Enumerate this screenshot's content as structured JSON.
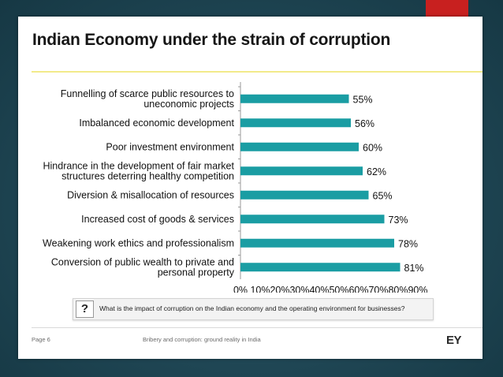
{
  "slide": {
    "title": "Indian Economy under the strain of corruption",
    "question_mark": "?",
    "question": "What is the impact of corruption on the Indian economy and the operating environment for businesses?",
    "page": "Page 6",
    "footer_note": "Bribery and corruption: ground reality in India",
    "logo": "EY"
  },
  "colors": {
    "bar": "#1a9da3",
    "accent_tab": "#c8201f",
    "title_rule": "#f2ea8a"
  },
  "chart_data": {
    "type": "bar",
    "orientation": "horizontal",
    "title": "",
    "xlabel": "",
    "ylabel": "",
    "xlim": [
      0,
      90
    ],
    "ticks": [
      "0%",
      "10%",
      "20%",
      "30%",
      "40%",
      "50%",
      "60%",
      "70%",
      "80%",
      "90%"
    ],
    "grid": false,
    "legend": "none",
    "categories": [
      "Funnelling of scarce public resources to uneconomic projects",
      "Imbalanced economic development",
      "Poor investment environment",
      "Hindrance in the development of fair market structures deterring healthy competition",
      "Diversion & misallocation of resources",
      "Increased cost of goods & services",
      "Weakening work ethics and professionalism",
      "Conversion of public wealth to private and personal property"
    ],
    "category_lines": [
      [
        "Funnelling of scarce public resources to",
        "uneconomic projects"
      ],
      [
        "Imbalanced economic development"
      ],
      [
        "Poor investment environment"
      ],
      [
        "Hindrance in the development of fair market",
        "structures deterring healthy competition"
      ],
      [
        "Diversion & misallocation of resources"
      ],
      [
        "Increased cost of goods & services"
      ],
      [
        "Weakening work ethics and professionalism"
      ],
      [
        "Conversion of public wealth to private and",
        "personal property"
      ]
    ],
    "values": [
      55,
      56,
      60,
      62,
      65,
      73,
      78,
      81
    ],
    "value_labels": [
      "55%",
      "56%",
      "60%",
      "62%",
      "65%",
      "73%",
      "78%",
      "81%"
    ]
  }
}
